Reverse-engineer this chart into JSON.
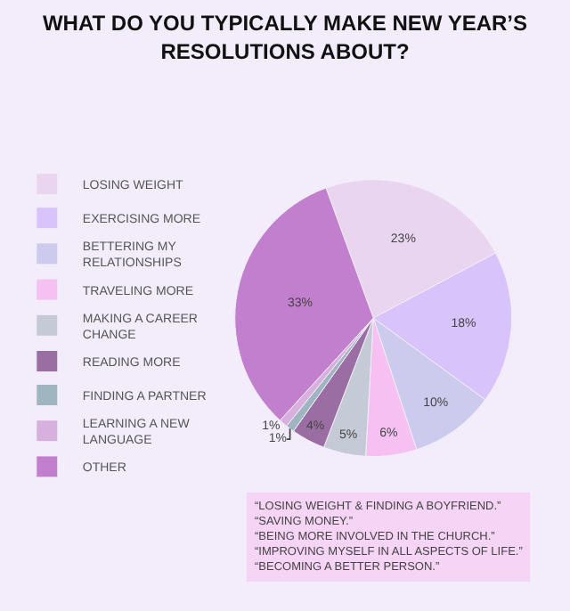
{
  "chart_data": {
    "type": "pie",
    "title": "WHAT DO YOU TYPICALLY MAKE NEW YEAR’S RESOLUTIONS ABOUT?",
    "categories": [
      "LOSING WEIGHT",
      "EXERCISING MORE",
      "BETTERING MY RELATIONSHIPS",
      "TRAVELING MORE",
      "MAKING A CAREER CHANGE",
      "READING MORE",
      "FINDING A PARTNER",
      "LEARNING A NEW LANGUAGE",
      "OTHER"
    ],
    "values": [
      23,
      18,
      10,
      6,
      5,
      4,
      1,
      1,
      33
    ],
    "value_labels": [
      "23%",
      "18%",
      "10%",
      "6%",
      "5%",
      "4%",
      "1%",
      "1%",
      "33%"
    ],
    "colors": [
      "#ead5f0",
      "#d9c3fb",
      "#cccbee",
      "#f6c0f2",
      "#c5cbd6",
      "#9b6ea3",
      "#9fb5c0",
      "#d8b0de",
      "#c27fcd"
    ],
    "legend": "left",
    "annotations": [
      "“LOSING WEIGHT & FINDING A BOYFRIEND.”\n“SAVING MONEY.”\n“BEING MORE INVOLVED IN THE CHURCH.”\n“IMPROVING MYSELF IN ALL ASPECTS OF LIFE.”\n“BECOMING A BETTER PERSON.”"
    ]
  }
}
